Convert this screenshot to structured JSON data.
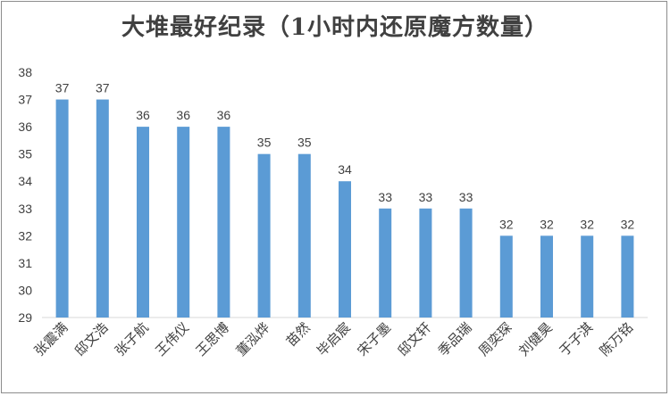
{
  "chart_data": {
    "type": "bar",
    "title": "大堆最好纪录（1小时内还原魔方数量）",
    "categories": [
      "张震满",
      "邸文浩",
      "张子航",
      "王伟仪",
      "王思博",
      "董泓烨",
      "苗然",
      "毕启宸",
      "宋子墨",
      "邸文轩",
      "季品瑞",
      "周奕琛",
      "刘健昊",
      "于子淇",
      "陈万铭"
    ],
    "values": [
      37,
      37,
      36,
      36,
      36,
      35,
      35,
      34,
      33,
      33,
      33,
      32,
      32,
      32,
      32
    ],
    "ylim": [
      29,
      38
    ],
    "yticks": [
      29,
      30,
      31,
      32,
      33,
      34,
      35,
      36,
      37,
      38
    ],
    "xlabel": "",
    "ylabel": "",
    "grid": false,
    "legend": "none",
    "bar_color": "#5b9bd5"
  }
}
